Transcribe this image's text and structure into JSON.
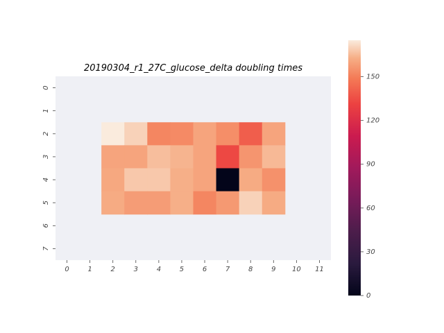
{
  "chart_data": {
    "type": "heatmap",
    "title": "20190304_r1_27C_glucose_delta doubling times",
    "x_ticks": [
      "0",
      "1",
      "2",
      "3",
      "4",
      "5",
      "6",
      "7",
      "8",
      "9",
      "10",
      "11"
    ],
    "y_ticks": [
      "0",
      "1",
      "2",
      "3",
      "4",
      "5",
      "6",
      "7"
    ],
    "colorbar": {
      "min": 0,
      "max": 175,
      "ticks": [
        "0",
        "30",
        "60",
        "90",
        "120",
        "150"
      ],
      "tick_values": [
        0,
        30,
        60,
        90,
        120,
        150
      ],
      "colormap": "rocket"
    },
    "missing_color": "#eff0f5",
    "values": [
      [
        null,
        null,
        null,
        null,
        null,
        null,
        null,
        null,
        null,
        null,
        null,
        null
      ],
      [
        null,
        null,
        null,
        null,
        null,
        null,
        null,
        null,
        null,
        null,
        null,
        null
      ],
      [
        null,
        null,
        175,
        170,
        152,
        153,
        160,
        154,
        140,
        160,
        null,
        null
      ],
      [
        null,
        null,
        160,
        160,
        166,
        164,
        160,
        133,
        156,
        165,
        null,
        null
      ],
      [
        null,
        null,
        161,
        168,
        168,
        163,
        160,
        0,
        162,
        155,
        null,
        null
      ],
      [
        null,
        null,
        162,
        158,
        158,
        163,
        152,
        157,
        170,
        162,
        null,
        null
      ],
      [
        null,
        null,
        null,
        null,
        null,
        null,
        null,
        null,
        null,
        null,
        null,
        null
      ],
      [
        null,
        null,
        null,
        null,
        null,
        null,
        null,
        null,
        null,
        null,
        null,
        null
      ]
    ]
  }
}
